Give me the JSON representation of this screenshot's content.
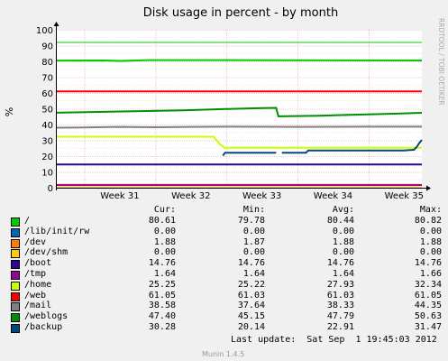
{
  "chart_data": {
    "type": "line",
    "title": "Disk usage in percent - by month",
    "ylabel": "%",
    "side_label": "RRDTOOL / TOBI OETIKER",
    "ylim": [
      0,
      100
    ],
    "yticks": [
      0,
      10,
      20,
      30,
      40,
      50,
      60,
      70,
      80,
      90,
      100
    ],
    "grid": true,
    "warning_line": 92,
    "xticks": [
      "Week 31",
      "Week 32",
      "Week 33",
      "Week 34",
      "Week 35"
    ],
    "xtick_weeks": [
      31,
      32,
      33,
      34,
      35
    ],
    "xlim_weeks": [
      30.6,
      35.75
    ],
    "columns": [
      "Cur:",
      "Min:",
      "Avg:",
      "Max:"
    ],
    "series": [
      {
        "name": "/",
        "color": "#00cc00",
        "cur": "80.61",
        "min": "79.78",
        "avg": "80.44",
        "max": "80.82",
        "points": [
          [
            30.6,
            80.5
          ],
          [
            31.3,
            80.6
          ],
          [
            31.5,
            80.3
          ],
          [
            31.9,
            80.8
          ],
          [
            32.3,
            80.8
          ],
          [
            35.75,
            80.6
          ]
        ]
      },
      {
        "name": "/lib/init/rw",
        "color": "#0066b3",
        "cur": "0.00",
        "min": "0.00",
        "avg": "0.00",
        "max": "0.00",
        "points": [
          [
            30.6,
            0.0
          ],
          [
            35.75,
            0.0
          ]
        ]
      },
      {
        "name": "/dev",
        "color": "#ff8000",
        "cur": "1.88",
        "min": "1.87",
        "avg": "1.88",
        "max": "1.88",
        "points": [
          [
            30.6,
            1.88
          ],
          [
            35.75,
            1.88
          ]
        ]
      },
      {
        "name": "/dev/shm",
        "color": "#ffcc00",
        "cur": "0.00",
        "min": "0.00",
        "avg": "0.00",
        "max": "0.00",
        "points": [
          [
            30.6,
            0.0
          ],
          [
            35.75,
            0.0
          ]
        ]
      },
      {
        "name": "/boot",
        "color": "#330099",
        "cur": "14.76",
        "min": "14.76",
        "avg": "14.76",
        "max": "14.76",
        "points": [
          [
            30.6,
            14.76
          ],
          [
            35.75,
            14.76
          ]
        ]
      },
      {
        "name": "/tmp",
        "color": "#990099",
        "cur": "1.64",
        "min": "1.64",
        "avg": "1.64",
        "max": "1.66",
        "points": [
          [
            30.6,
            1.65
          ],
          [
            35.75,
            1.64
          ]
        ]
      },
      {
        "name": "/home",
        "color": "#ccff00",
        "cur": "25.25",
        "min": "25.22",
        "avg": "27.93",
        "max": "32.34",
        "points": [
          [
            30.6,
            32.3
          ],
          [
            32.82,
            32.3
          ],
          [
            32.9,
            28.0
          ],
          [
            32.97,
            25.3
          ],
          [
            35.75,
            25.25
          ]
        ]
      },
      {
        "name": "/web",
        "color": "#ff0000",
        "cur": "61.05",
        "min": "61.03",
        "avg": "61.03",
        "max": "61.05",
        "points": [
          [
            30.6,
            61.03
          ],
          [
            35.75,
            61.05
          ]
        ]
      },
      {
        "name": "/mail",
        "color": "#808080",
        "cur": "38.58",
        "min": "37.64",
        "avg": "38.33",
        "max": "44.35",
        "points": [
          [
            30.6,
            38.0
          ],
          [
            31.0,
            38.2
          ],
          [
            31.5,
            38.5
          ],
          [
            32.0,
            38.3
          ],
          [
            32.5,
            38.5
          ],
          [
            33.0,
            38.6
          ],
          [
            34.0,
            38.5
          ],
          [
            35.0,
            38.6
          ],
          [
            35.75,
            38.6
          ]
        ]
      },
      {
        "name": "/weblogs",
        "color": "#008f00",
        "cur": "47.40",
        "min": "45.15",
        "avg": "47.79",
        "max": "50.63",
        "points": [
          [
            30.6,
            47.5
          ],
          [
            31.2,
            48.0
          ],
          [
            31.8,
            48.5
          ],
          [
            32.4,
            49.0
          ],
          [
            33.0,
            49.8
          ],
          [
            33.5,
            50.4
          ],
          [
            33.7,
            50.6
          ],
          [
            33.73,
            45.2
          ],
          [
            34.3,
            45.6
          ],
          [
            34.8,
            46.2
          ],
          [
            35.3,
            46.8
          ],
          [
            35.75,
            47.4
          ]
        ]
      },
      {
        "name": "/backup",
        "color": "#00487d",
        "cur": "30.28",
        "min": "20.14",
        "avg": "22.91",
        "max": "31.47",
        "segments": [
          [
            [
              32.95,
              20.3
            ],
            [
              32.98,
              22.2
            ],
            [
              33.7,
              22.2
            ]
          ],
          [
            [
              33.78,
              22.2
            ],
            [
              34.12,
              22.2
            ],
            [
              34.15,
              23.6
            ],
            [
              35.5,
              23.6
            ],
            [
              35.58,
              23.8
            ],
            [
              35.64,
              24.0
            ],
            [
              35.68,
              26.0
            ],
            [
              35.71,
              28.0
            ],
            [
              35.75,
              30.3
            ]
          ]
        ]
      }
    ],
    "last_update": "Last update:  Sat Sep  1 19:45:03 2012",
    "footer": "Munin 1.4.5"
  }
}
